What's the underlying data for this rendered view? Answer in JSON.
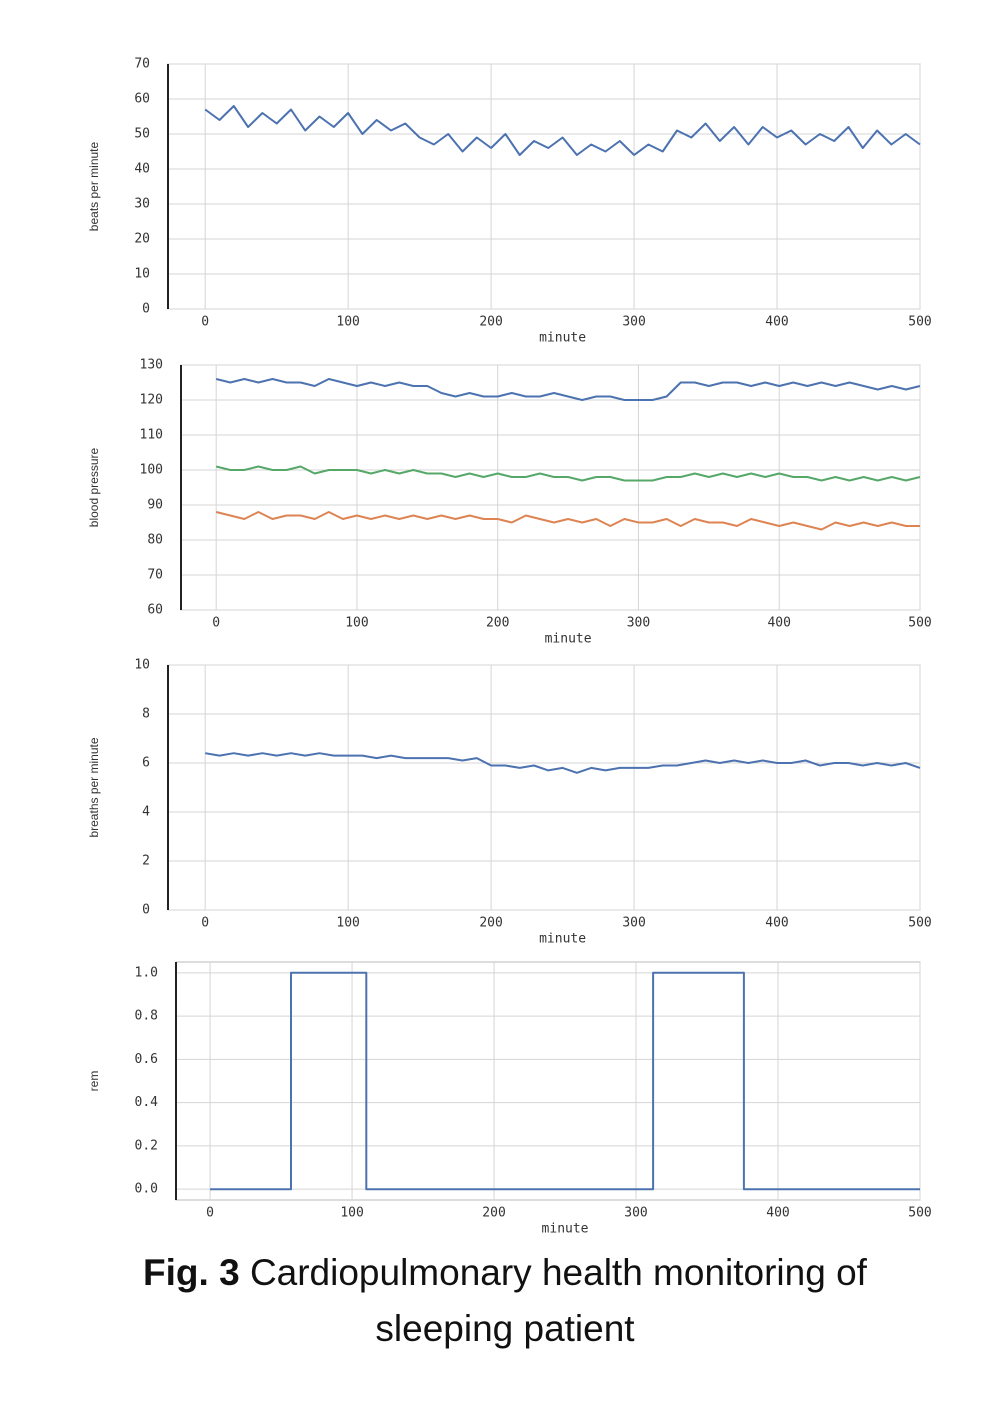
{
  "chart_data": [
    {
      "type": "line",
      "ylabel": "beats per minute",
      "xlabel": "minute",
      "color": "#4c72b0",
      "x": [
        0,
        10,
        20,
        30,
        40,
        50,
        60,
        70,
        80,
        90,
        100,
        110,
        120,
        130,
        140,
        150,
        160,
        170,
        180,
        190,
        200,
        210,
        220,
        230,
        240,
        250,
        260,
        270,
        280,
        290,
        300,
        310,
        320,
        330,
        340,
        350,
        360,
        370,
        380,
        390,
        400,
        410,
        420,
        430,
        440,
        450,
        460,
        470,
        480,
        490,
        500
      ],
      "values": [
        57,
        54,
        58,
        52,
        56,
        53,
        57,
        51,
        55,
        52,
        56,
        50,
        54,
        51,
        53,
        49,
        47,
        50,
        45,
        49,
        46,
        50,
        44,
        48,
        46,
        49,
        44,
        47,
        45,
        48,
        44,
        47,
        45,
        51,
        49,
        53,
        48,
        52,
        47,
        52,
        49,
        51,
        47,
        50,
        48,
        52,
        46,
        51,
        47,
        50,
        47
      ],
      "xlim": [
        -26,
        500
      ],
      "xticks": [
        0,
        100,
        200,
        300,
        400,
        500
      ],
      "ylim": [
        0,
        70
      ],
      "yticks": [
        0,
        10,
        20,
        30,
        40,
        50,
        60,
        70
      ],
      "grid": true
    },
    {
      "type": "line",
      "ylabel": "blood pressure",
      "xlabel": "minute",
      "x": [
        0,
        10,
        20,
        30,
        40,
        50,
        60,
        70,
        80,
        90,
        100,
        110,
        120,
        130,
        140,
        150,
        160,
        170,
        180,
        190,
        200,
        210,
        220,
        230,
        240,
        250,
        260,
        270,
        280,
        290,
        300,
        310,
        320,
        330,
        340,
        350,
        360,
        370,
        380,
        390,
        400,
        410,
        420,
        430,
        440,
        450,
        460,
        470,
        480,
        490,
        500
      ],
      "series": [
        {
          "color": "#4c72b0",
          "values": [
            126,
            125,
            126,
            125,
            126,
            125,
            125,
            124,
            126,
            125,
            124,
            125,
            124,
            125,
            124,
            124,
            122,
            121,
            122,
            121,
            121,
            122,
            121,
            121,
            122,
            121,
            120,
            121,
            121,
            120,
            120,
            120,
            121,
            125,
            125,
            124,
            125,
            125,
            124,
            125,
            124,
            125,
            124,
            125,
            124,
            125,
            124,
            123,
            124,
            123,
            124
          ]
        },
        {
          "color": "#55a868",
          "values": [
            101,
            100,
            100,
            101,
            100,
            100,
            101,
            99,
            100,
            100,
            100,
            99,
            100,
            99,
            100,
            99,
            99,
            98,
            99,
            98,
            99,
            98,
            98,
            99,
            98,
            98,
            97,
            98,
            98,
            97,
            97,
            97,
            98,
            98,
            99,
            98,
            99,
            98,
            99,
            98,
            99,
            98,
            98,
            97,
            98,
            97,
            98,
            97,
            98,
            97,
            98
          ]
        },
        {
          "color": "#dd8452",
          "values": [
            88,
            87,
            86,
            88,
            86,
            87,
            87,
            86,
            88,
            86,
            87,
            86,
            87,
            86,
            87,
            86,
            87,
            86,
            87,
            86,
            86,
            85,
            87,
            86,
            85,
            86,
            85,
            86,
            84,
            86,
            85,
            85,
            86,
            84,
            86,
            85,
            85,
            84,
            86,
            85,
            84,
            85,
            84,
            83,
            85,
            84,
            85,
            84,
            85,
            84,
            84
          ]
        }
      ],
      "xlim": [
        -25,
        500
      ],
      "xticks": [
        0,
        100,
        200,
        300,
        400,
        500
      ],
      "ylim": [
        60,
        130
      ],
      "yticks": [
        60,
        70,
        80,
        90,
        100,
        110,
        120,
        130
      ],
      "grid": true
    },
    {
      "type": "line",
      "ylabel": "breaths per minute",
      "xlabel": "minute",
      "color": "#4c72b0",
      "x": [
        0,
        10,
        20,
        30,
        40,
        50,
        60,
        70,
        80,
        90,
        100,
        110,
        120,
        130,
        140,
        150,
        160,
        170,
        180,
        190,
        200,
        210,
        220,
        230,
        240,
        250,
        260,
        270,
        280,
        290,
        300,
        310,
        320,
        330,
        340,
        350,
        360,
        370,
        380,
        390,
        400,
        410,
        420,
        430,
        440,
        450,
        460,
        470,
        480,
        490,
        500
      ],
      "values": [
        6.4,
        6.3,
        6.4,
        6.3,
        6.4,
        6.3,
        6.4,
        6.3,
        6.4,
        6.3,
        6.3,
        6.3,
        6.2,
        6.3,
        6.2,
        6.2,
        6.2,
        6.2,
        6.1,
        6.2,
        5.9,
        5.9,
        5.8,
        5.9,
        5.7,
        5.8,
        5.6,
        5.8,
        5.7,
        5.8,
        5.8,
        5.8,
        5.9,
        5.9,
        6.0,
        6.1,
        6.0,
        6.1,
        6.0,
        6.1,
        6.0,
        6.0,
        6.1,
        5.9,
        6.0,
        6.0,
        5.9,
        6.0,
        5.9,
        6.0,
        5.8
      ],
      "xlim": [
        -26,
        500
      ],
      "xticks": [
        0,
        100,
        200,
        300,
        400,
        500
      ],
      "ylim": [
        0,
        10
      ],
      "yticks": [
        0,
        2,
        4,
        6,
        8,
        10
      ],
      "grid": true
    },
    {
      "type": "line",
      "ylabel": "rem",
      "xlabel": "minute",
      "color": "#4c72b0",
      "x": [
        0,
        57,
        57,
        110,
        110,
        312,
        312,
        376,
        376,
        500
      ],
      "values": [
        0,
        0,
        1,
        1,
        0,
        0,
        1,
        1,
        0,
        0
      ],
      "xlim": [
        -24,
        500
      ],
      "xticks": [
        0,
        100,
        200,
        300,
        400,
        500
      ],
      "ylim": [
        -0.05,
        1.05
      ],
      "yticks": [
        {
          "value": 0,
          "label": "0.0"
        },
        0.2,
        0.4,
        0.6,
        0.8,
        {
          "value": 1,
          "label": "1.0"
        }
      ],
      "grid": true
    }
  ],
  "caption": {
    "label": "Fig. 3",
    "text": "Cardiopulmonary health monitoring of sleeping patient"
  }
}
